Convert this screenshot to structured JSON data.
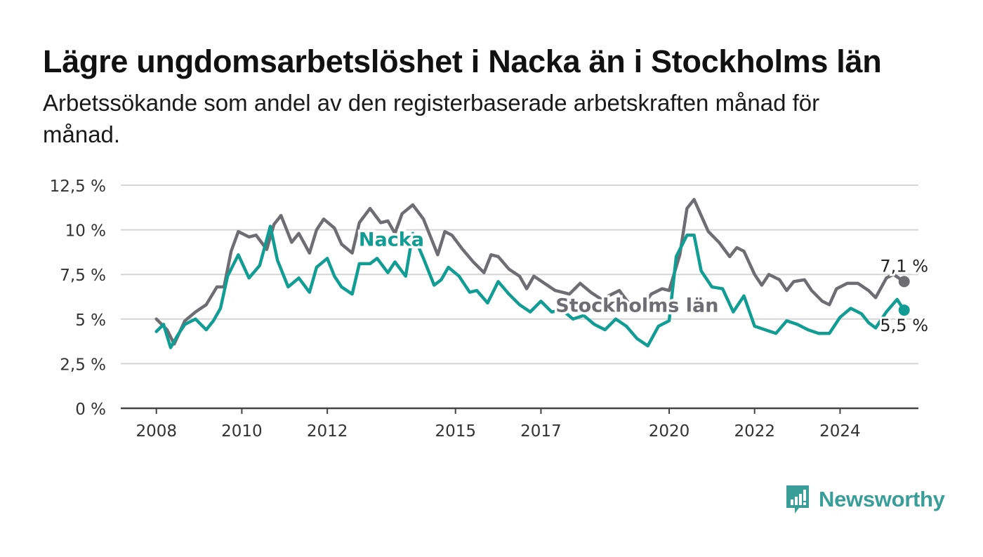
{
  "title": "Lägre ungdomsarbetslöshet i Nacka än i Stockholms län",
  "subtitle": "Arbetssökande som andel av den registerbaserade arbetskraften månad för månad.",
  "brand": {
    "name": "Newsworthy",
    "icon": "bar-chart-speech-bubble-icon",
    "color": "#3a9e98"
  },
  "chart_data": {
    "type": "line",
    "title": "Lägre ungdomsarbetslöshet i Nacka än i Stockholms län",
    "subtitle": "Arbetssökande som andel av den registerbaserade arbetskraften månad för månad.",
    "xlabel": "",
    "ylabel": "",
    "ylim": [
      0,
      12.5
    ],
    "xlim": [
      "2007-03",
      "2025-11"
    ],
    "y_ticks": [
      0,
      2.5,
      5,
      7.5,
      10,
      12.5
    ],
    "y_tick_labels": [
      "0 %",
      "2,5 %",
      "5 %",
      "7,5 %",
      "10 %",
      "12,5 %"
    ],
    "x_ticks": [
      "2008-01",
      "2010-01",
      "2012-01",
      "2015-01",
      "2017-01",
      "2020-01",
      "2022-01",
      "2024-01"
    ],
    "x_tick_labels": [
      "2008",
      "2010",
      "2012",
      "2015",
      "2017",
      "2020",
      "2022",
      "2024"
    ],
    "grid": true,
    "legend": "direct labels on lines",
    "series": [
      {
        "name": "Stockholms län",
        "color": "#6e6d72",
        "points": [
          [
            "2008-01",
            5.0
          ],
          [
            "2008-04",
            4.4
          ],
          [
            "2008-06",
            3.6
          ],
          [
            "2008-09",
            4.9
          ],
          [
            "2008-12",
            5.4
          ],
          [
            "2009-03",
            5.8
          ],
          [
            "2009-06",
            6.8
          ],
          [
            "2009-08",
            6.8
          ],
          [
            "2009-10",
            8.8
          ],
          [
            "2009-12",
            9.9
          ],
          [
            "2010-03",
            9.6
          ],
          [
            "2010-05",
            9.7
          ],
          [
            "2010-08",
            8.9
          ],
          [
            "2010-10",
            10.3
          ],
          [
            "2010-12",
            10.8
          ],
          [
            "2011-03",
            9.3
          ],
          [
            "2011-05",
            9.8
          ],
          [
            "2011-08",
            8.7
          ],
          [
            "2011-10",
            10.0
          ],
          [
            "2011-12",
            10.6
          ],
          [
            "2012-03",
            10.1
          ],
          [
            "2012-05",
            9.2
          ],
          [
            "2012-08",
            8.7
          ],
          [
            "2012-10",
            10.4
          ],
          [
            "2013-01",
            11.2
          ],
          [
            "2013-04",
            10.4
          ],
          [
            "2013-06",
            10.5
          ],
          [
            "2013-08",
            9.8
          ],
          [
            "2013-10",
            10.9
          ],
          [
            "2014-01",
            11.4
          ],
          [
            "2014-04",
            10.6
          ],
          [
            "2014-08",
            8.6
          ],
          [
            "2014-10",
            9.9
          ],
          [
            "2014-12",
            9.7
          ],
          [
            "2015-03",
            8.9
          ],
          [
            "2015-06",
            8.2
          ],
          [
            "2015-09",
            7.6
          ],
          [
            "2015-11",
            8.6
          ],
          [
            "2016-01",
            8.5
          ],
          [
            "2016-04",
            7.8
          ],
          [
            "2016-07",
            7.4
          ],
          [
            "2016-09",
            6.7
          ],
          [
            "2016-11",
            7.4
          ],
          [
            "2017-02",
            7.0
          ],
          [
            "2017-05",
            6.6
          ],
          [
            "2017-07",
            6.5
          ],
          [
            "2017-09",
            6.4
          ],
          [
            "2017-12",
            7.0
          ],
          [
            "2018-03",
            6.5
          ],
          [
            "2018-06",
            6.1
          ],
          [
            "2018-09",
            6.4
          ],
          [
            "2018-11",
            6.6
          ],
          [
            "2019-02",
            5.8
          ],
          [
            "2019-05",
            5.6
          ],
          [
            "2019-08",
            6.4
          ],
          [
            "2019-11",
            6.7
          ],
          [
            "2020-01",
            6.6
          ],
          [
            "2020-04",
            8.6
          ],
          [
            "2020-06",
            11.2
          ],
          [
            "2020-08",
            11.7
          ],
          [
            "2020-10",
            10.8
          ],
          [
            "2020-12",
            9.9
          ],
          [
            "2021-03",
            9.3
          ],
          [
            "2021-06",
            8.5
          ],
          [
            "2021-08",
            9.0
          ],
          [
            "2021-10",
            8.8
          ],
          [
            "2022-01",
            7.5
          ],
          [
            "2022-03",
            6.9
          ],
          [
            "2022-05",
            7.5
          ],
          [
            "2022-08",
            7.2
          ],
          [
            "2022-10",
            6.6
          ],
          [
            "2022-12",
            7.1
          ],
          [
            "2023-03",
            7.2
          ],
          [
            "2023-05",
            6.6
          ],
          [
            "2023-08",
            6.0
          ],
          [
            "2023-10",
            5.8
          ],
          [
            "2023-12",
            6.7
          ],
          [
            "2024-03",
            7.0
          ],
          [
            "2024-06",
            7.0
          ],
          [
            "2024-09",
            6.6
          ],
          [
            "2024-11",
            6.2
          ],
          [
            "2025-02",
            7.3
          ],
          [
            "2025-04",
            7.5
          ],
          [
            "2025-07",
            7.1
          ]
        ],
        "end_label": "7,1 %",
        "label_position": "under line, around 2019–2021"
      },
      {
        "name": "Nacka",
        "color": "#119d93",
        "points": [
          [
            "2008-01",
            4.3
          ],
          [
            "2008-03",
            4.7
          ],
          [
            "2008-05",
            3.4
          ],
          [
            "2008-07",
            4.1
          ],
          [
            "2008-09",
            4.7
          ],
          [
            "2008-12",
            5.0
          ],
          [
            "2009-03",
            4.4
          ],
          [
            "2009-05",
            4.9
          ],
          [
            "2009-07",
            5.6
          ],
          [
            "2009-09",
            7.4
          ],
          [
            "2009-12",
            8.6
          ],
          [
            "2010-03",
            7.3
          ],
          [
            "2010-06",
            8.0
          ],
          [
            "2010-09",
            10.2
          ],
          [
            "2010-11",
            8.3
          ],
          [
            "2011-02",
            6.8
          ],
          [
            "2011-05",
            7.3
          ],
          [
            "2011-08",
            6.5
          ],
          [
            "2011-10",
            7.9
          ],
          [
            "2012-01",
            8.4
          ],
          [
            "2012-03",
            7.4
          ],
          [
            "2012-05",
            6.8
          ],
          [
            "2012-08",
            6.4
          ],
          [
            "2012-10",
            8.1
          ],
          [
            "2013-01",
            8.1
          ],
          [
            "2013-03",
            8.4
          ],
          [
            "2013-06",
            7.6
          ],
          [
            "2013-08",
            8.2
          ],
          [
            "2013-11",
            7.4
          ],
          [
            "2014-01",
            9.8
          ],
          [
            "2014-04",
            8.4
          ],
          [
            "2014-07",
            6.9
          ],
          [
            "2014-09",
            7.2
          ],
          [
            "2014-11",
            7.9
          ],
          [
            "2015-02",
            7.4
          ],
          [
            "2015-05",
            6.5
          ],
          [
            "2015-07",
            6.6
          ],
          [
            "2015-10",
            5.9
          ],
          [
            "2016-01",
            7.1
          ],
          [
            "2016-04",
            6.4
          ],
          [
            "2016-07",
            5.8
          ],
          [
            "2016-10",
            5.4
          ],
          [
            "2017-01",
            6.0
          ],
          [
            "2017-04",
            5.4
          ],
          [
            "2017-07",
            5.5
          ],
          [
            "2017-10",
            5.0
          ],
          [
            "2018-01",
            5.2
          ],
          [
            "2018-04",
            4.7
          ],
          [
            "2018-07",
            4.4
          ],
          [
            "2018-10",
            5.0
          ],
          [
            "2019-01",
            4.6
          ],
          [
            "2019-04",
            3.9
          ],
          [
            "2019-07",
            3.5
          ],
          [
            "2019-10",
            4.6
          ],
          [
            "2020-01",
            4.9
          ],
          [
            "2020-03",
            8.5
          ],
          [
            "2020-06",
            9.7
          ],
          [
            "2020-08",
            9.7
          ],
          [
            "2020-10",
            7.7
          ],
          [
            "2021-01",
            6.8
          ],
          [
            "2021-04",
            6.7
          ],
          [
            "2021-07",
            5.4
          ],
          [
            "2021-10",
            6.3
          ],
          [
            "2022-01",
            4.6
          ],
          [
            "2022-04",
            4.4
          ],
          [
            "2022-07",
            4.2
          ],
          [
            "2022-10",
            4.9
          ],
          [
            "2023-01",
            4.7
          ],
          [
            "2023-04",
            4.4
          ],
          [
            "2023-07",
            4.2
          ],
          [
            "2023-10",
            4.2
          ],
          [
            "2024-01",
            5.1
          ],
          [
            "2024-04",
            5.6
          ],
          [
            "2024-07",
            5.3
          ],
          [
            "2024-09",
            4.8
          ],
          [
            "2024-11",
            4.5
          ],
          [
            "2025-02",
            5.4
          ],
          [
            "2025-05",
            6.1
          ],
          [
            "2025-07",
            5.5
          ]
        ],
        "end_label": "5,5 %",
        "label_position": "above line, around 2013–2014"
      }
    ]
  }
}
